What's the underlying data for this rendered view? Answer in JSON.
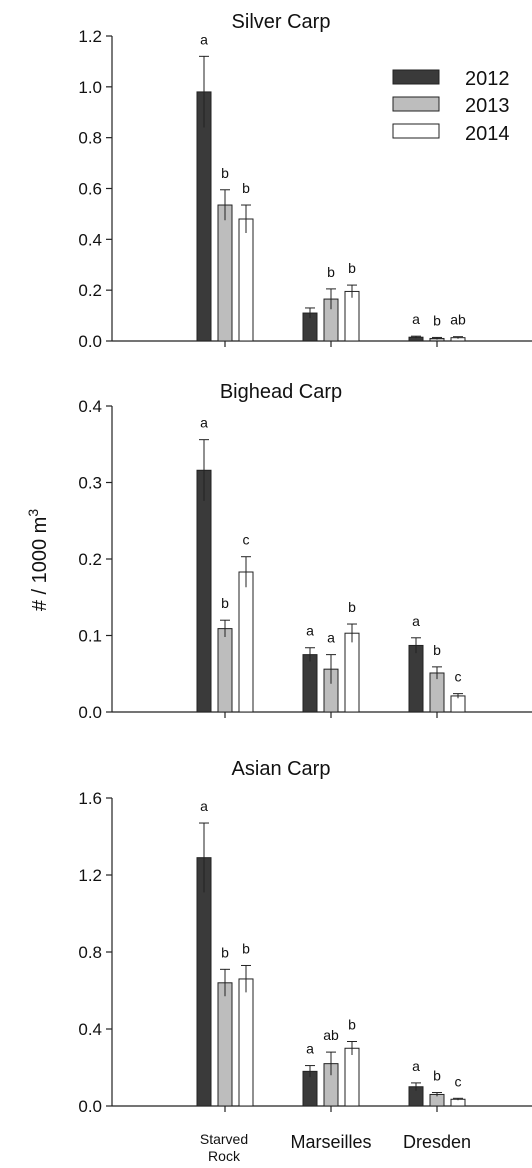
{
  "chart_data": [
    {
      "type": "bar",
      "title": "Silver Carp",
      "categories": [
        "Starved Rock",
        "Marseilles",
        "Dresden"
      ],
      "series": [
        {
          "name": "2012",
          "values": [
            0.98,
            0.11,
            0.015
          ],
          "errors": [
            0.14,
            0.02,
            0.004
          ]
        },
        {
          "name": "2013",
          "values": [
            0.535,
            0.165,
            0.01
          ],
          "errors": [
            0.06,
            0.04,
            0.004
          ]
        },
        {
          "name": "2014",
          "values": [
            0.48,
            0.195,
            0.013
          ],
          "errors": [
            0.055,
            0.025,
            0.004
          ]
        }
      ],
      "significance": [
        [
          "a",
          "b",
          "b"
        ],
        [
          "",
          "b",
          "b"
        ],
        [
          "a",
          "b",
          "ab"
        ]
      ],
      "ylim": [
        0,
        1.2
      ],
      "yticks": [
        "0.0",
        "0.2",
        "0.4",
        "0.6",
        "0.8",
        "1.0",
        "1.2"
      ],
      "ytick_values": [
        0,
        0.2,
        0.4,
        0.6,
        0.8,
        1.0,
        1.2
      ]
    },
    {
      "type": "bar",
      "title": "Bighead Carp",
      "categories": [
        "Starved Rock",
        "Marseilles",
        "Dresden"
      ],
      "series": [
        {
          "name": "2012",
          "values": [
            0.316,
            0.075,
            0.087
          ],
          "errors": [
            0.04,
            0.009,
            0.01
          ]
        },
        {
          "name": "2013",
          "values": [
            0.109,
            0.056,
            0.051
          ],
          "errors": [
            0.011,
            0.019,
            0.008
          ]
        },
        {
          "name": "2014",
          "values": [
            0.183,
            0.103,
            0.021
          ],
          "errors": [
            0.02,
            0.012,
            0.003
          ]
        }
      ],
      "significance": [
        [
          "a",
          "b",
          "c"
        ],
        [
          "a",
          "a",
          "b"
        ],
        [
          "a",
          "b",
          "c"
        ]
      ],
      "ylim": [
        0,
        0.4
      ],
      "yticks": [
        "0.0",
        "0.1",
        "0.2",
        "0.3",
        "0.4"
      ],
      "ytick_values": [
        0,
        0.1,
        0.2,
        0.3,
        0.4
      ]
    },
    {
      "type": "bar",
      "title": "Asian Carp",
      "categories": [
        "Starved Rock",
        "Marseilles",
        "Dresden"
      ],
      "series": [
        {
          "name": "2012",
          "values": [
            1.29,
            0.18,
            0.1
          ],
          "errors": [
            0.18,
            0.03,
            0.02
          ]
        },
        {
          "name": "2013",
          "values": [
            0.64,
            0.22,
            0.06
          ],
          "errors": [
            0.07,
            0.06,
            0.01
          ]
        },
        {
          "name": "2014",
          "values": [
            0.66,
            0.3,
            0.035
          ],
          "errors": [
            0.07,
            0.035,
            0.005
          ]
        }
      ],
      "significance": [
        [
          "a",
          "b",
          "b"
        ],
        [
          "a",
          "ab",
          "b"
        ],
        [
          "a",
          "b",
          "c"
        ]
      ],
      "ylim": [
        0,
        1.6
      ],
      "yticks": [
        "0.0",
        "0.4",
        "0.8",
        "1.2",
        "1.6"
      ],
      "ytick_values": [
        0,
        0.4,
        0.8,
        1.2,
        1.6
      ]
    }
  ],
  "ylabel": "# / 1000 m",
  "ylabel_superscript": "3",
  "legend": {
    "placement": "top-right",
    "entries": [
      {
        "label": "2012",
        "color": "#3a3a3a"
      },
      {
        "label": "2013",
        "color": "#bdbdbd"
      },
      {
        "label": "2014",
        "color": "#ffffff"
      }
    ]
  },
  "category_labels": [
    {
      "lines": [
        "Starved",
        "Rock"
      ]
    },
    {
      "lines": [
        "Marseilles"
      ]
    },
    {
      "lines": [
        "Dresden"
      ]
    }
  ]
}
